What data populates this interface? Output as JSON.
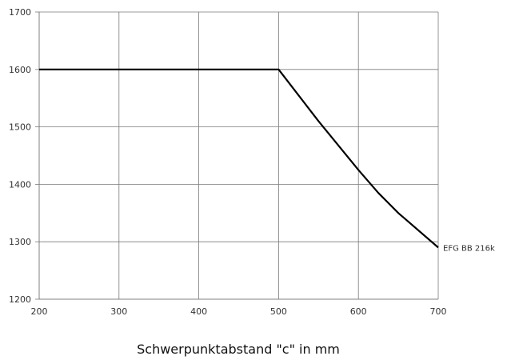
{
  "chart_data": {
    "type": "line",
    "title": "",
    "xlabel": "Schwerpunktabstand \"c\" in mm",
    "ylabel": "",
    "xlim": [
      200,
      700
    ],
    "ylim": [
      1200,
      1700
    ],
    "xticks": [
      "200",
      "300",
      "400",
      "500",
      "600",
      "700"
    ],
    "yticks": [
      "1200",
      "1300",
      "1400",
      "1500",
      "1600",
      "1700"
    ],
    "grid": true,
    "series": [
      {
        "name": "EFG BB 216k",
        "color": "#000000",
        "x": [
          200,
          500,
          550,
          600,
          625,
          650,
          700
        ],
        "y": [
          1600,
          1600,
          1510,
          1425,
          1385,
          1350,
          1290
        ]
      }
    ]
  }
}
